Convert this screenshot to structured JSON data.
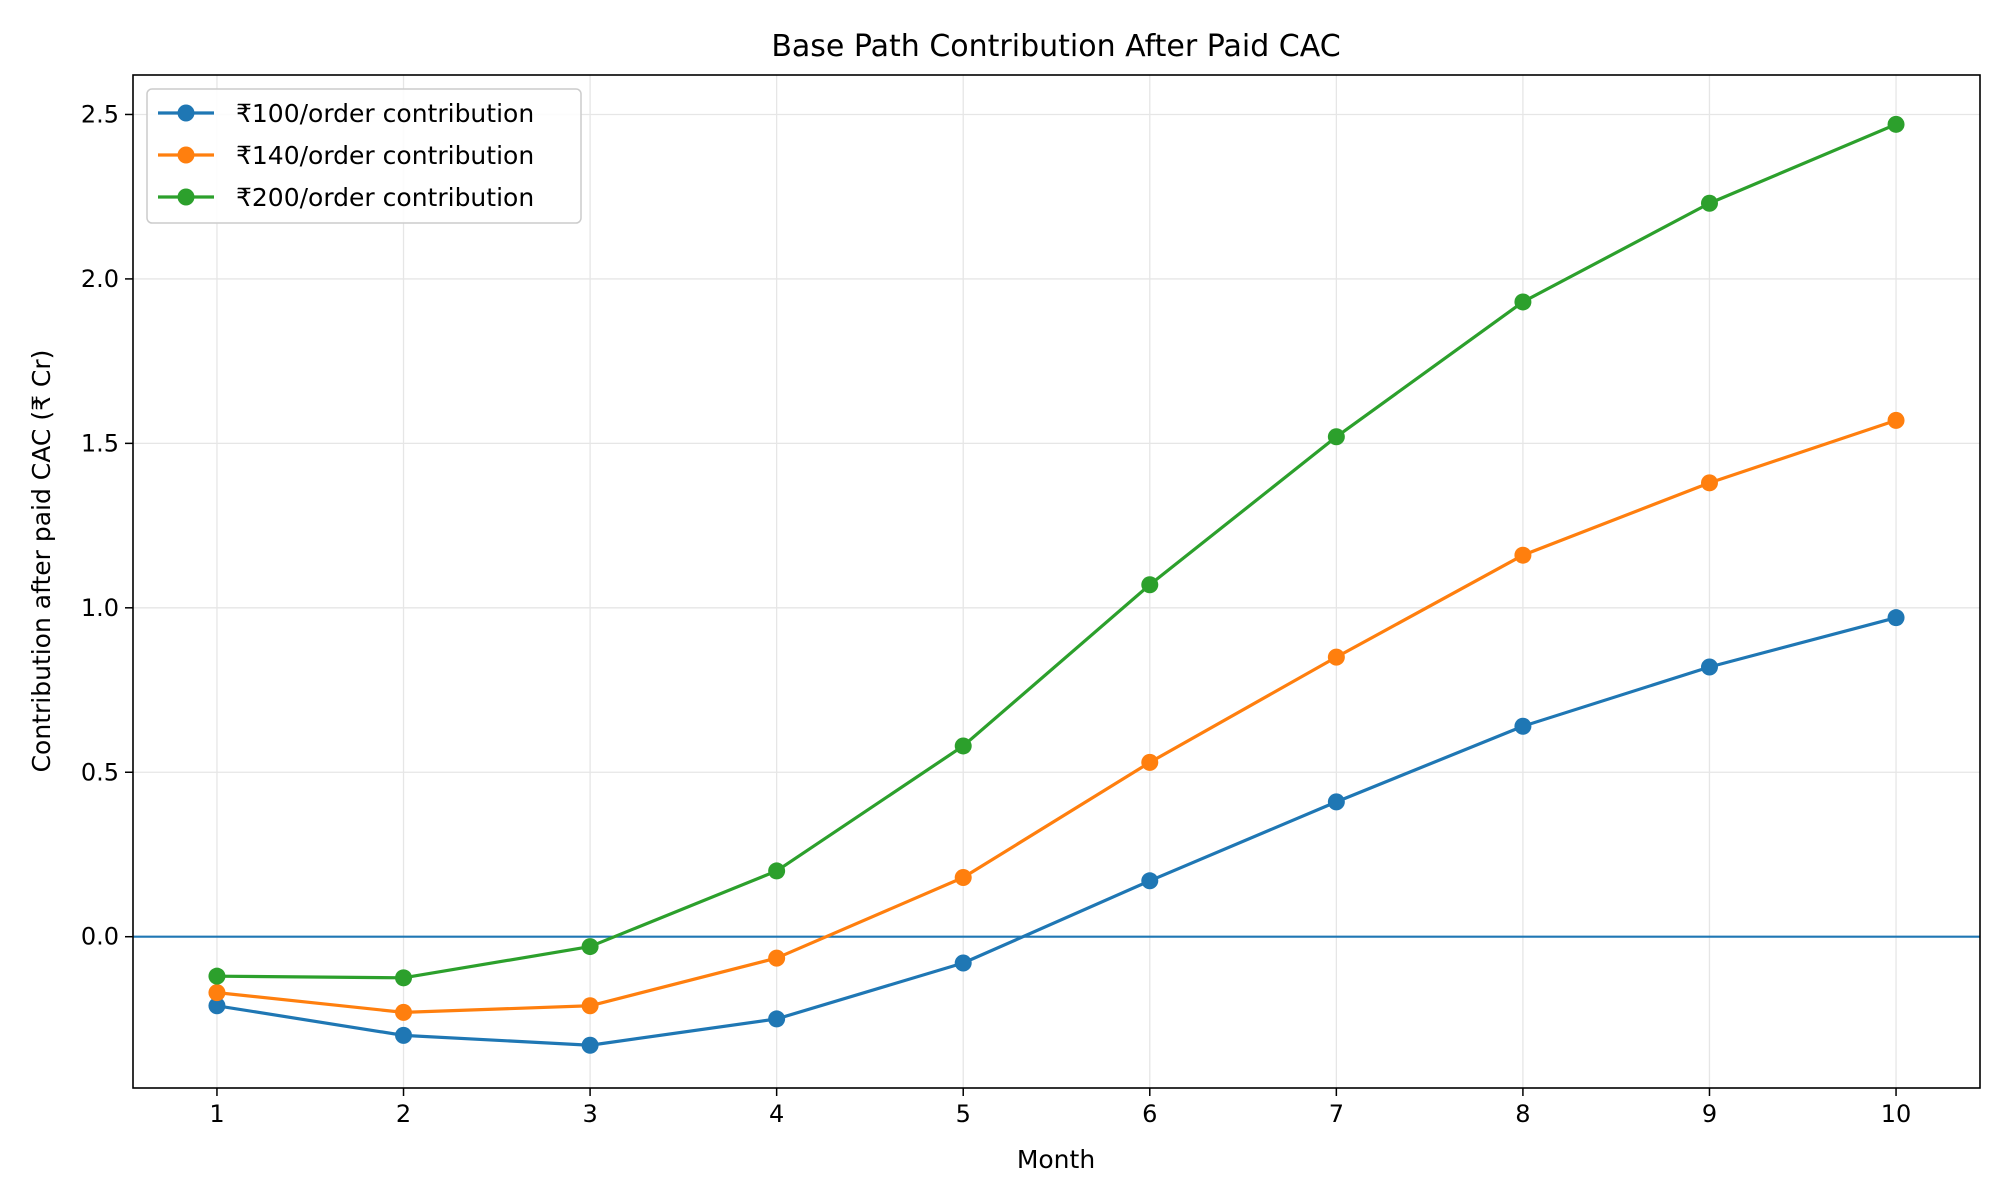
{
  "chart_data": {
    "type": "line",
    "title": "Base Path Contribution After Paid CAC",
    "xlabel": "Month",
    "ylabel": "Contribution after paid CAC (₹ Cr)",
    "x": [
      1,
      2,
      3,
      4,
      5,
      6,
      7,
      8,
      9,
      10
    ],
    "x_ticks": [
      "1",
      "2",
      "3",
      "4",
      "5",
      "6",
      "7",
      "8",
      "9",
      "10"
    ],
    "y_ticks": [
      "0.0",
      "0.5",
      "1.0",
      "1.5",
      "2.0",
      "2.5"
    ],
    "xlim": [
      0.55,
      10.45
    ],
    "ylim": [
      -0.46,
      2.62
    ],
    "grid": true,
    "legend_position": "top-left",
    "reference_line": {
      "y": 0.0,
      "color": "#1f77b4"
    },
    "series": [
      {
        "name": "₹100/order contribution",
        "color": "#1f77b4",
        "values": [
          -0.21,
          -0.3,
          -0.33,
          -0.25,
          -0.08,
          0.17,
          0.41,
          0.64,
          0.82,
          0.97
        ]
      },
      {
        "name": "₹140/order contribution",
        "color": "#ff7f0e",
        "values": [
          -0.17,
          -0.23,
          -0.21,
          -0.065,
          0.18,
          0.53,
          0.85,
          1.16,
          1.38,
          1.57
        ]
      },
      {
        "name": "₹200/order contribution",
        "color": "#2ca02c",
        "values": [
          -0.12,
          -0.125,
          -0.03,
          0.2,
          0.58,
          1.07,
          1.52,
          1.93,
          2.23,
          2.47
        ]
      }
    ]
  }
}
